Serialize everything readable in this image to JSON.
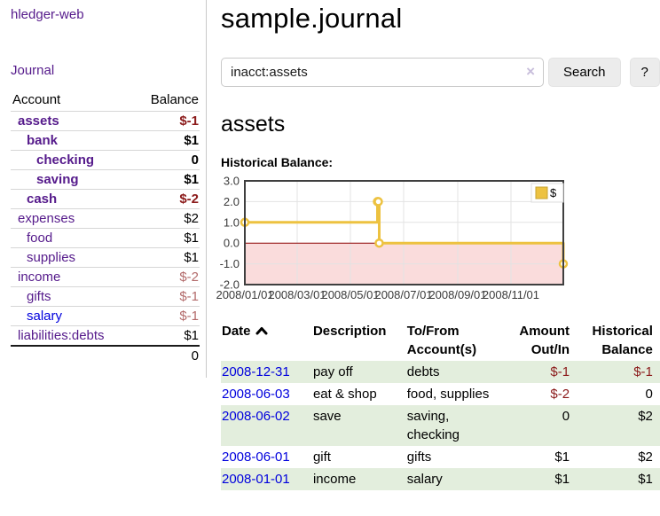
{
  "colors": {
    "purple": "#551a8b",
    "blue": "#0000dd",
    "neg-strong": "#8b1a1a",
    "neg-muted": "#b36b6b",
    "stripe": "#e3eedd",
    "row-border": "#d6d6d6",
    "accent-chart": "#EDC240"
  },
  "sidebar": {
    "app_title": "hledger-web",
    "journal_link": "Journal",
    "accounts_header": {
      "account": "Account",
      "balance": "Balance"
    },
    "accounts": [
      {
        "name": "assets",
        "depth": 1,
        "bold": true,
        "balance": "$-1",
        "balance_class": "neg-strong"
      },
      {
        "name": "bank",
        "depth": 2,
        "bold": true,
        "balance": "$1",
        "balance_class": "pos"
      },
      {
        "name": "checking",
        "depth": 3,
        "bold": true,
        "balance": "0",
        "balance_class": "pos"
      },
      {
        "name": "saving",
        "depth": 3,
        "bold": true,
        "balance": "$1",
        "balance_class": "pos"
      },
      {
        "name": "cash",
        "depth": 2,
        "bold": true,
        "balance": "$-2",
        "balance_class": "neg-strong"
      },
      {
        "name": "expenses",
        "depth": 1,
        "bold": false,
        "balance": "$2",
        "balance_class": "pos"
      },
      {
        "name": "food",
        "depth": 2,
        "bold": false,
        "balance": "$1",
        "balance_class": "pos"
      },
      {
        "name": "supplies",
        "depth": 2,
        "bold": false,
        "balance": "$1",
        "balance_class": "pos"
      },
      {
        "name": "income",
        "depth": 1,
        "bold": false,
        "balance": "$-2",
        "balance_class": "neg-muted"
      },
      {
        "name": "gifts",
        "depth": 2,
        "bold": false,
        "balance": "$-1",
        "balance_class": "neg-muted"
      },
      {
        "name": "salary",
        "depth": 2,
        "bold": false,
        "balance": "$-1",
        "balance_class": "neg-muted",
        "link_color": "blue"
      },
      {
        "name": "liabilities:debts",
        "depth": 1,
        "bold": false,
        "balance": "$1",
        "balance_class": "pos"
      }
    ],
    "total": "0"
  },
  "header": {
    "title": "sample.journal"
  },
  "search": {
    "value": "inacct:assets",
    "clear_icon": "×",
    "button": "Search",
    "help_button": "?"
  },
  "account_page": {
    "title": "assets",
    "chart_label": "Historical Balance:"
  },
  "chart_data": {
    "type": "line",
    "step": true,
    "title": "Historical Balance",
    "xlim": [
      "2008-01-01",
      "2008-12-31"
    ],
    "ylim": [
      -2,
      3
    ],
    "y_ticks": [
      3,
      2,
      1,
      0,
      -1,
      -2
    ],
    "x_ticks": [
      "2008/01/01",
      "2008/03/01",
      "2008/05/01",
      "2008/07/01",
      "2008/09/01",
      "2008/11/01"
    ],
    "series": [
      {
        "name": "$",
        "color": "#EDC240",
        "marker_fill": "#ffffff",
        "points": [
          [
            "2008-01-01",
            1
          ],
          [
            "2008-06-01",
            2
          ],
          [
            "2008-06-02",
            2
          ],
          [
            "2008-06-03",
            0
          ],
          [
            "2008-12-31",
            -1
          ]
        ]
      }
    ],
    "grid_on": true,
    "grid_color": "#e3e3e3",
    "border_color": "#3f3f3f",
    "zero_line_color": "#8b0000",
    "negative_region_color": "#fadcdc",
    "legend": {
      "position": "top-right",
      "swatch_border": "#c7a32f",
      "box_border": "#dddddd"
    }
  },
  "transactions": {
    "columns": [
      {
        "label": "Date",
        "sortable": true,
        "class": "c-date"
      },
      {
        "label": "Description",
        "class": "c-desc"
      },
      {
        "label": "To/From Account(s)",
        "class": "c-acct"
      },
      {
        "label": "Amount Out/In",
        "class": "c-amt"
      },
      {
        "label": "Historical Balance",
        "class": "c-bal"
      }
    ],
    "rows": [
      {
        "date": "2008-12-31",
        "description": "pay off",
        "accounts": "debts",
        "amount": "$-1",
        "amount_class": "neg",
        "balance": "$-1",
        "balance_class": "neg"
      },
      {
        "date": "2008-06-03",
        "description": "eat & shop",
        "accounts": "food, supplies",
        "amount": "$-2",
        "amount_class": "neg",
        "balance": "0",
        "balance_class": "pos"
      },
      {
        "date": "2008-06-02",
        "description": "save",
        "accounts": "saving, checking",
        "amount": "0",
        "amount_class": "pos",
        "balance": "$2",
        "balance_class": "pos"
      },
      {
        "date": "2008-06-01",
        "description": "gift",
        "accounts": "gifts",
        "amount": "$1",
        "amount_class": "pos",
        "balance": "$2",
        "balance_class": "pos"
      },
      {
        "date": "2008-01-01",
        "description": "income",
        "accounts": "salary",
        "amount": "$1",
        "amount_class": "pos",
        "balance": "$1",
        "balance_class": "pos"
      }
    ]
  }
}
